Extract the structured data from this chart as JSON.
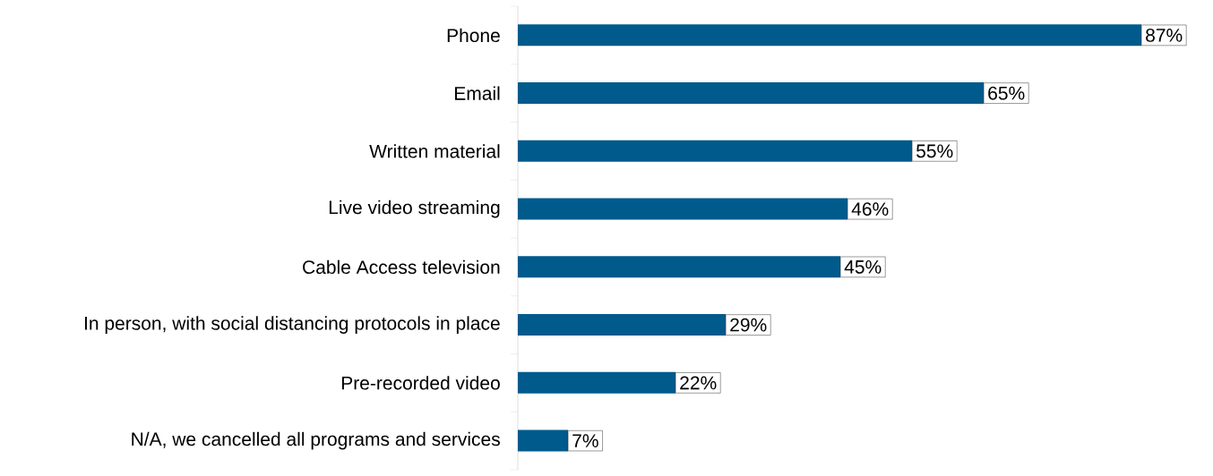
{
  "chart_data": {
    "type": "bar",
    "orientation": "horizontal",
    "categories": [
      "Phone",
      "Email",
      "Written material",
      "Live video streaming",
      "Cable Access television",
      "In person, with social distancing protocols in place",
      "Pre-recorded video",
      "N/A, we cancelled all programs and services"
    ],
    "values": [
      87,
      65,
      55,
      46,
      45,
      29,
      22,
      7
    ],
    "value_labels": [
      "87%",
      "65%",
      "55%",
      "46%",
      "45%",
      "29%",
      "22%",
      "7%"
    ],
    "color": "#005a8c"
  }
}
